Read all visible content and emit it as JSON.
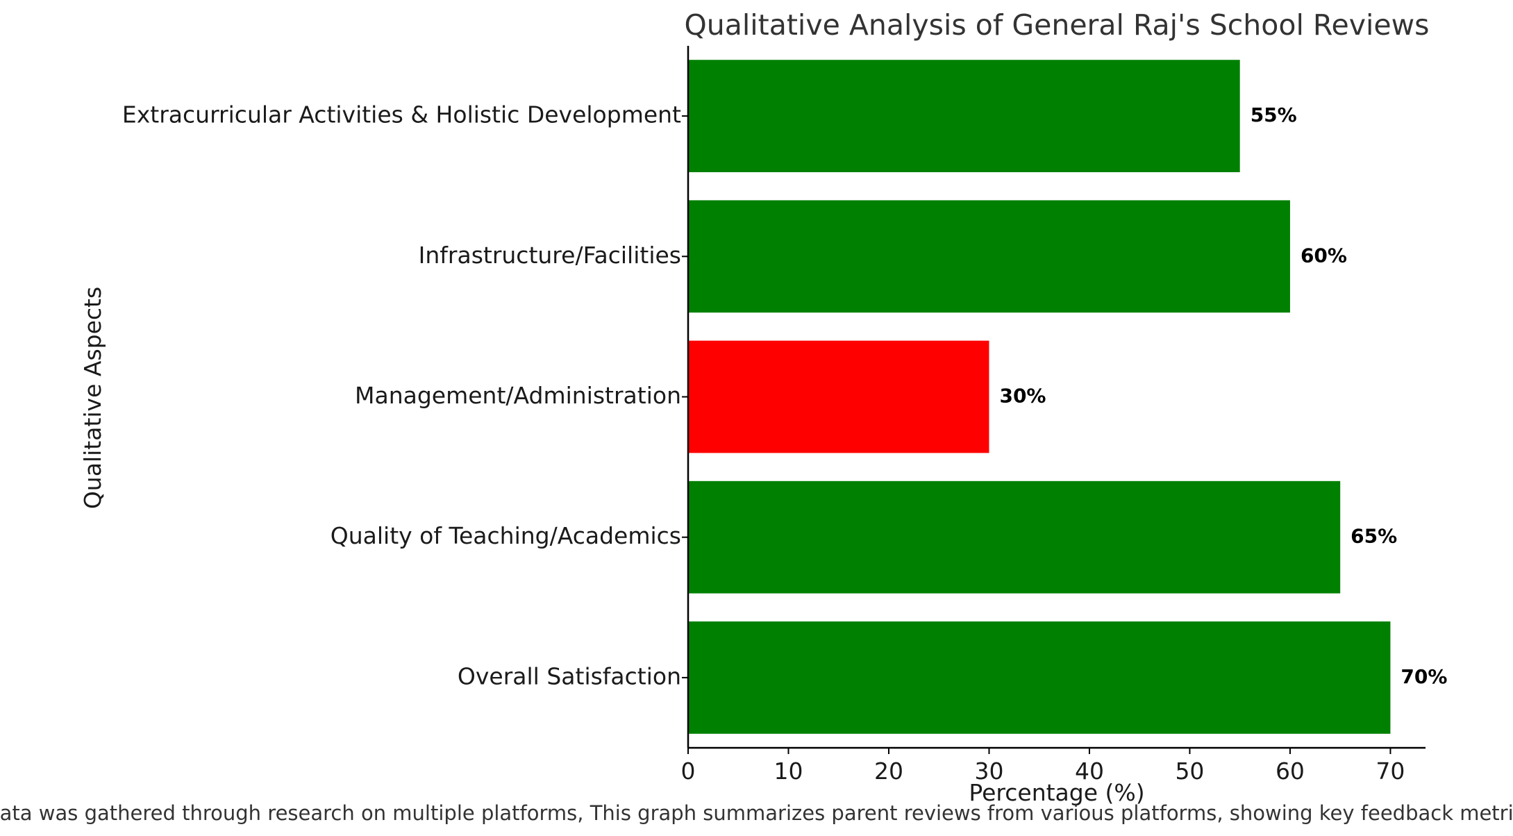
{
  "chart_data": {
    "type": "bar",
    "orientation": "horizontal",
    "title": "Qualitative Analysis of General Raj's School Reviews",
    "xlabel": "Percentage (%)",
    "ylabel": "Qualitative Aspects",
    "xlim": [
      0,
      73.5
    ],
    "xticks": [
      0,
      10,
      20,
      30,
      40,
      50,
      60,
      70
    ],
    "grid": false,
    "legend": "none",
    "categories": [
      "Overall Satisfaction",
      "Quality of Teaching/Academics",
      "Management/Administration",
      "Infrastructure/Facilities",
      "Extracurricular Activities & Holistic Development"
    ],
    "values": [
      70,
      65,
      30,
      60,
      55
    ],
    "value_labels": [
      "70%",
      "65%",
      "30%",
      "60%",
      "55%"
    ],
    "colors": [
      "#008000",
      "#008000",
      "#ff0000",
      "#008000",
      "#008000"
    ],
    "caption": "Data was gathered through research on multiple platforms, This graph summarizes parent reviews from various platforms, showing key feedback metrics"
  }
}
